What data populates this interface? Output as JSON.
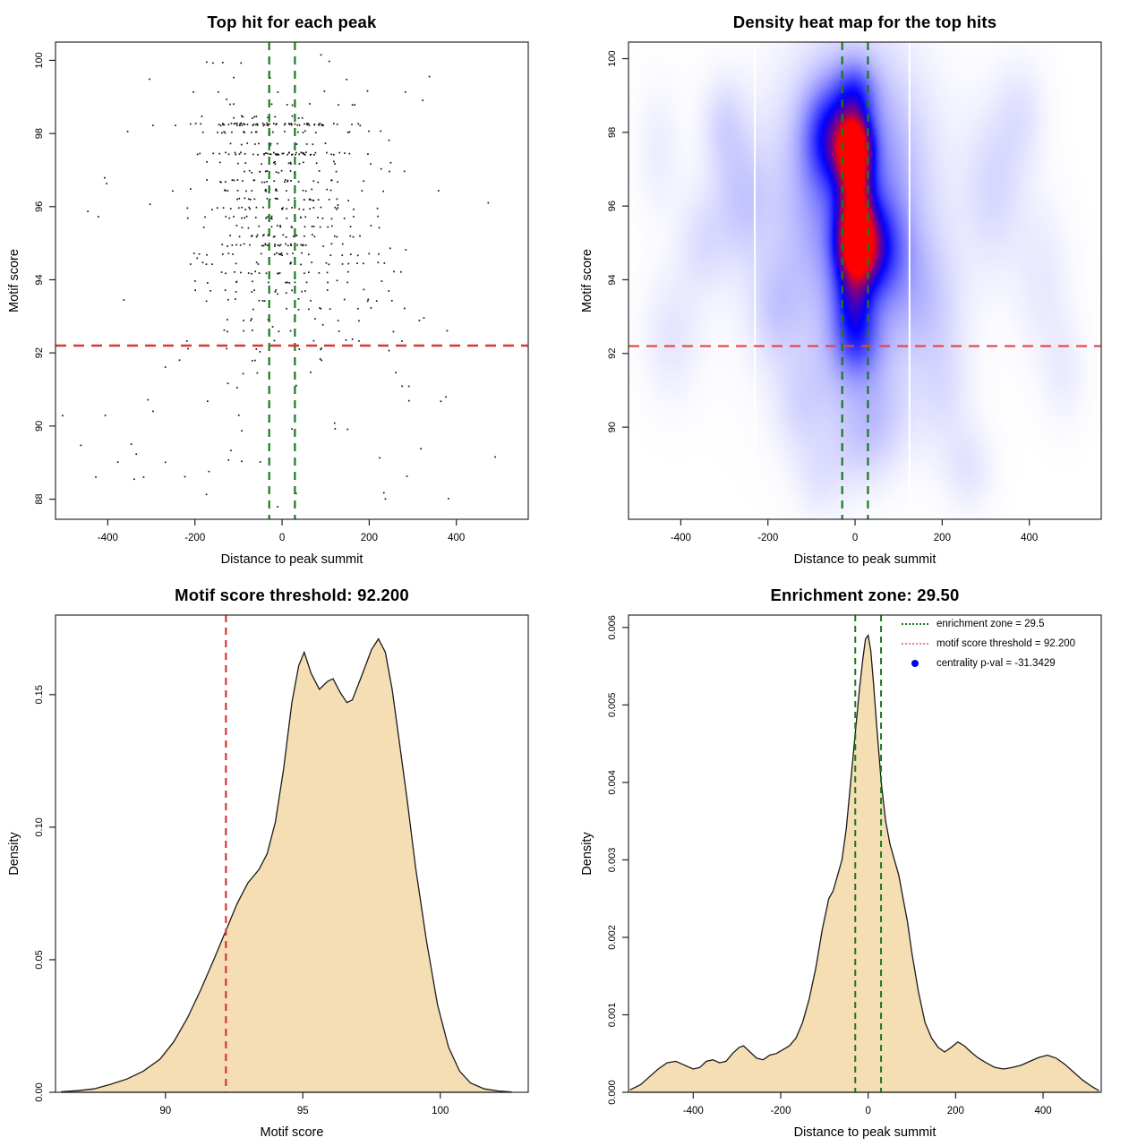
{
  "page": {
    "background": "#ffffff",
    "accent_green": "#1b7a1b",
    "accent_red": "#d93636"
  },
  "chart_data": [
    {
      "id": "top-hit-scatter",
      "type": "scatter",
      "title": "Top hit for each peak",
      "xlabel": "Distance to peak summit",
      "ylabel": "Motif score",
      "xlim": [
        -520,
        565
      ],
      "ylim": [
        87.45,
        100.5
      ],
      "xticks": {
        "values": [
          -400,
          -200,
          0,
          200,
          400
        ],
        "labels": [
          "-400",
          "-200",
          "0",
          "200",
          "400"
        ]
      },
      "yticks": {
        "values": [
          88,
          90,
          92,
          94,
          96,
          98,
          100
        ],
        "labels": [
          "88",
          "90",
          "92",
          "94",
          "96",
          "98",
          "100"
        ]
      },
      "grid": false,
      "point_color": "#000000",
      "vlines": {
        "xs": [
          -29.5,
          29.5
        ],
        "color": "#1b7a1b",
        "dash": "9,7",
        "width": 2.2
      },
      "hlines": {
        "ys": [
          92.2
        ],
        "color": "#d93636",
        "dash": "12,8",
        "width": 2.4
      },
      "scatter_bands": [
        {
          "y": 99.95,
          "n": 5,
          "s": 160
        },
        {
          "y": 99.5,
          "n": 4,
          "s": 180
        },
        {
          "y": 99.15,
          "n": 6,
          "s": 150
        },
        {
          "y": 98.8,
          "n": 9,
          "s": 120
        },
        {
          "y": 98.45,
          "n": 12,
          "s": 100
        },
        {
          "y": 98.25,
          "n": 68,
          "s": 105
        },
        {
          "y": 98.05,
          "n": 22,
          "s": 115
        },
        {
          "y": 97.7,
          "n": 12,
          "s": 130
        },
        {
          "y": 97.45,
          "n": 52,
          "s": 85
        },
        {
          "y": 97.2,
          "n": 18,
          "s": 110
        },
        {
          "y": 96.95,
          "n": 16,
          "s": 125
        },
        {
          "y": 96.7,
          "n": 26,
          "s": 95
        },
        {
          "y": 96.45,
          "n": 22,
          "s": 105
        },
        {
          "y": 96.2,
          "n": 24,
          "s": 95
        },
        {
          "y": 95.95,
          "n": 28,
          "s": 90
        },
        {
          "y": 95.7,
          "n": 24,
          "s": 95
        },
        {
          "y": 95.45,
          "n": 20,
          "s": 115
        },
        {
          "y": 95.2,
          "n": 26,
          "s": 90
        },
        {
          "y": 94.95,
          "n": 30,
          "s": 85
        },
        {
          "y": 94.7,
          "n": 24,
          "s": 95
        },
        {
          "y": 94.45,
          "n": 20,
          "s": 110
        },
        {
          "y": 94.2,
          "n": 18,
          "s": 105
        },
        {
          "y": 93.95,
          "n": 16,
          "s": 115
        },
        {
          "y": 93.7,
          "n": 14,
          "s": 125
        },
        {
          "y": 93.45,
          "n": 12,
          "s": 135
        },
        {
          "y": 93.2,
          "n": 10,
          "s": 145
        },
        {
          "y": 92.9,
          "n": 9,
          "s": 155
        },
        {
          "y": 92.6,
          "n": 9,
          "s": 160
        },
        {
          "y": 92.35,
          "n": 7,
          "s": 170
        },
        {
          "y": 92.1,
          "n": 6,
          "s": 180
        },
        {
          "y": 91.8,
          "n": 5,
          "s": 200
        },
        {
          "y": 91.45,
          "n": 4,
          "s": 210
        },
        {
          "y": 91.1,
          "n": 3,
          "s": 215
        },
        {
          "y": 90.7,
          "n": 3,
          "s": 225
        },
        {
          "y": 90.3,
          "n": 3,
          "s": 230
        },
        {
          "y": 89.9,
          "n": 2,
          "s": 200
        },
        {
          "y": 89.5,
          "n": 2,
          "s": 215
        },
        {
          "y": 89.05,
          "n": 2,
          "s": 205
        },
        {
          "y": 88.6,
          "n": 2,
          "s": 215
        },
        {
          "y": 88.15,
          "n": 2,
          "s": 225
        },
        {
          "y": 87.8,
          "n": 1,
          "s": 120
        }
      ],
      "scatter_outliers": {
        "n": 55,
        "x_range": [
          -505,
          505
        ],
        "y_range": [
          88.0,
          100.2
        ]
      }
    },
    {
      "id": "density-heat-map",
      "type": "heatmap",
      "title": "Density heat map for the top hits",
      "xlabel": "Distance to peak summit",
      "ylabel": "Motif score",
      "xlim": [
        -520,
        565
      ],
      "ylim": [
        87.5,
        100.45
      ],
      "xticks": {
        "values": [
          -400,
          -200,
          0,
          200,
          400
        ],
        "labels": [
          "-400",
          "-200",
          "0",
          "200",
          "400"
        ]
      },
      "yticks": {
        "values": [
          90,
          92,
          94,
          96,
          98,
          100
        ],
        "labels": [
          "90",
          "92",
          "94",
          "96",
          "98",
          "100"
        ]
      },
      "color_scale": {
        "stops": [
          "#ffffff",
          "#0000ff",
          "#ff0000"
        ],
        "blue_point": 0.55,
        "normalize": 1.3
      },
      "gap_lines_x": [
        -230,
        125
      ],
      "vlines": {
        "xs": [
          -29.5,
          29.5
        ],
        "color": "#1b7a1b",
        "dash": "9,7",
        "width": 2.2
      },
      "hlines": {
        "ys": [
          92.2
        ],
        "color": "#e04545",
        "dash": "12,8",
        "width": 2.2
      },
      "blobs": [
        {
          "x": -2,
          "y": 97.6,
          "sx": 26,
          "sy": 0.55,
          "w": 1.0
        },
        {
          "x": 3,
          "y": 95.0,
          "sx": 30,
          "sy": 0.65,
          "w": 0.97
        },
        {
          "x": 0,
          "y": 96.4,
          "sx": 26,
          "sy": 1.0,
          "w": 0.8
        },
        {
          "x": -55,
          "y": 97.9,
          "sx": 40,
          "sy": 0.9,
          "w": 0.5
        },
        {
          "x": 45,
          "y": 94.8,
          "sx": 45,
          "sy": 0.9,
          "w": 0.45
        },
        {
          "x": -5,
          "y": 93.6,
          "sx": 30,
          "sy": 0.8,
          "w": 0.42
        },
        {
          "x": 0,
          "y": 99.0,
          "sx": 30,
          "sy": 0.6,
          "w": 0.35
        },
        {
          "x": 5,
          "y": 92.4,
          "sx": 35,
          "sy": 0.7,
          "w": 0.28
        },
        {
          "x": 0,
          "y": 96.8,
          "sx": 90,
          "sy": 2.2,
          "w": 0.28
        },
        {
          "x": -20,
          "y": 95.5,
          "sx": 140,
          "sy": 2.8,
          "w": 0.16
        },
        {
          "x": 0,
          "y": 91.8,
          "sx": 60,
          "sy": 1.2,
          "w": 0.12
        },
        {
          "x": -300,
          "y": 98.2,
          "sx": 35,
          "sy": 0.9,
          "w": 0.1
        },
        {
          "x": -260,
          "y": 96.2,
          "sx": 45,
          "sy": 1.2,
          "w": 0.12
        },
        {
          "x": -350,
          "y": 95.0,
          "sx": 40,
          "sy": 1.0,
          "w": 0.08
        },
        {
          "x": -420,
          "y": 92.5,
          "sx": 45,
          "sy": 1.2,
          "w": 0.07
        },
        {
          "x": -180,
          "y": 93.2,
          "sx": 40,
          "sy": 1.0,
          "w": 0.1
        },
        {
          "x": -120,
          "y": 90.6,
          "sx": 45,
          "sy": 1.0,
          "w": 0.09
        },
        {
          "x": 60,
          "y": 90.2,
          "sx": 50,
          "sy": 1.0,
          "w": 0.1
        },
        {
          "x": 200,
          "y": 91.0,
          "sx": 45,
          "sy": 1.2,
          "w": 0.08
        },
        {
          "x": 150,
          "y": 93.5,
          "sx": 60,
          "sy": 1.2,
          "w": 0.12
        },
        {
          "x": 320,
          "y": 96.5,
          "sx": 50,
          "sy": 1.5,
          "w": 0.1
        },
        {
          "x": 380,
          "y": 98.5,
          "sx": 40,
          "sy": 1.0,
          "w": 0.07
        },
        {
          "x": 430,
          "y": 94.0,
          "sx": 45,
          "sy": 1.5,
          "w": 0.06
        },
        {
          "x": 260,
          "y": 88.9,
          "sx": 40,
          "sy": 0.8,
          "w": 0.07
        },
        {
          "x": -80,
          "y": 88.6,
          "sx": 40,
          "sy": 0.8,
          "w": 0.06
        },
        {
          "x": -450,
          "y": 97.5,
          "sx": 35,
          "sy": 1.2,
          "w": 0.05
        },
        {
          "x": 480,
          "y": 91.5,
          "sx": 35,
          "sy": 1.0,
          "w": 0.05
        },
        {
          "x": 0,
          "y": 89.5,
          "sx": 45,
          "sy": 0.9,
          "w": 0.07
        }
      ]
    },
    {
      "id": "motif-score-density",
      "type": "density",
      "title": "Motif score threshold: 92.200",
      "threshold": 92.2,
      "xlabel": "Motif score",
      "ylabel": "Density",
      "xlim": [
        86.0,
        103.2
      ],
      "ylim": [
        0,
        0.18
      ],
      "xticks": {
        "values": [
          90,
          95,
          100
        ],
        "labels": [
          "90",
          "95",
          "100"
        ]
      },
      "yticks": {
        "values": [
          0,
          0.05,
          0.1,
          0.15
        ],
        "labels": [
          "0.00",
          "0.05",
          "0.10",
          "0.15"
        ]
      },
      "fill_color": "#f5deb3",
      "line_color": "#1a1a1a",
      "vlines": {
        "xs": [
          92.2
        ],
        "color": "#d93636",
        "dash": "8,6",
        "width": 2.2
      },
      "curve": [
        [
          86.2,
          0.0002
        ],
        [
          86.8,
          0.0006
        ],
        [
          87.4,
          0.0013
        ],
        [
          88.0,
          0.003
        ],
        [
          88.6,
          0.005
        ],
        [
          89.2,
          0.008
        ],
        [
          89.8,
          0.0125
        ],
        [
          90.3,
          0.019
        ],
        [
          90.8,
          0.028
        ],
        [
          91.3,
          0.039
        ],
        [
          91.8,
          0.051
        ],
        [
          92.2,
          0.061
        ],
        [
          92.6,
          0.071
        ],
        [
          93.0,
          0.079
        ],
        [
          93.4,
          0.084
        ],
        [
          93.7,
          0.09
        ],
        [
          94.0,
          0.102
        ],
        [
          94.3,
          0.122
        ],
        [
          94.6,
          0.147
        ],
        [
          94.85,
          0.161
        ],
        [
          95.05,
          0.166
        ],
        [
          95.3,
          0.158
        ],
        [
          95.6,
          0.152
        ],
        [
          95.9,
          0.155
        ],
        [
          96.1,
          0.156
        ],
        [
          96.35,
          0.151
        ],
        [
          96.6,
          0.147
        ],
        [
          96.8,
          0.148
        ],
        [
          97.1,
          0.156
        ],
        [
          97.5,
          0.167
        ],
        [
          97.75,
          0.171
        ],
        [
          98.0,
          0.166
        ],
        [
          98.25,
          0.152
        ],
        [
          98.5,
          0.133
        ],
        [
          98.8,
          0.11
        ],
        [
          99.1,
          0.085
        ],
        [
          99.5,
          0.057
        ],
        [
          99.9,
          0.033
        ],
        [
          100.3,
          0.017
        ],
        [
          100.7,
          0.008
        ],
        [
          101.1,
          0.0035
        ],
        [
          101.6,
          0.0013
        ],
        [
          102.1,
          0.0005
        ],
        [
          102.6,
          0.0001
        ]
      ]
    },
    {
      "id": "enrichment-zone-density",
      "type": "density",
      "title": "Enrichment zone: 29.50",
      "enrichment_zone": 29.5,
      "motif_score_threshold": 92.2,
      "centrality_pval": -31.3429,
      "xlabel": "Distance to peak summit",
      "ylabel": "Density",
      "xlim": [
        -548,
        533
      ],
      "ylim": [
        0,
        0.00616
      ],
      "xticks": {
        "values": [
          -400,
          -200,
          0,
          200,
          400
        ],
        "labels": [
          "-400",
          "-200",
          "0",
          "200",
          "400"
        ]
      },
      "yticks": {
        "values": [
          0,
          0.001,
          0.002,
          0.003,
          0.004,
          0.005,
          0.006
        ],
        "labels": [
          "0.000",
          "0.001",
          "0.002",
          "0.003",
          "0.004",
          "0.005",
          "0.006"
        ]
      },
      "fill_color": "#f5deb3",
      "line_color": "#1a1a1a",
      "vlines": {
        "xs": [
          -29.5,
          29.5
        ],
        "color": "#1b7a1b",
        "dash": "7,5",
        "width": 2.0
      },
      "legend": {
        "position": "top-right-inside",
        "items": [
          {
            "swatch": "dotted-line",
            "color": "#1b7a1b",
            "label": "enrichment zone = 29.5"
          },
          {
            "swatch": "dotted-line",
            "color": "#f08080",
            "label": "motif score threshold = 92.200"
          },
          {
            "swatch": "dot",
            "color": "#0000ee",
            "label": "centrality p-val = -31.3429"
          }
        ]
      },
      "curve": [
        [
          -545,
          3e-05
        ],
        [
          -520,
          0.0001
        ],
        [
          -500,
          0.0002
        ],
        [
          -480,
          0.0003
        ],
        [
          -460,
          0.00038
        ],
        [
          -440,
          0.0004
        ],
        [
          -420,
          0.00035
        ],
        [
          -400,
          0.0003
        ],
        [
          -385,
          0.00032
        ],
        [
          -370,
          0.0004
        ],
        [
          -355,
          0.00042
        ],
        [
          -340,
          0.00038
        ],
        [
          -325,
          0.0004
        ],
        [
          -310,
          0.0005
        ],
        [
          -295,
          0.00058
        ],
        [
          -285,
          0.0006
        ],
        [
          -270,
          0.00052
        ],
        [
          -255,
          0.00044
        ],
        [
          -240,
          0.00042
        ],
        [
          -225,
          0.00048
        ],
        [
          -210,
          0.0005
        ],
        [
          -195,
          0.00055
        ],
        [
          -180,
          0.0006
        ],
        [
          -165,
          0.0007
        ],
        [
          -150,
          0.0009
        ],
        [
          -135,
          0.0012
        ],
        [
          -120,
          0.0016
        ],
        [
          -105,
          0.0021
        ],
        [
          -90,
          0.0025
        ],
        [
          -80,
          0.0026
        ],
        [
          -70,
          0.0028
        ],
        [
          -60,
          0.003
        ],
        [
          -50,
          0.0034
        ],
        [
          -40,
          0.004
        ],
        [
          -30,
          0.0046
        ],
        [
          -20,
          0.0052
        ],
        [
          -12,
          0.0056
        ],
        [
          -6,
          0.00585
        ],
        [
          0,
          0.0059
        ],
        [
          6,
          0.0057
        ],
        [
          12,
          0.0053
        ],
        [
          20,
          0.0047
        ],
        [
          30,
          0.004
        ],
        [
          40,
          0.0035
        ],
        [
          50,
          0.0032
        ],
        [
          60,
          0.003
        ],
        [
          70,
          0.0028
        ],
        [
          80,
          0.0025
        ],
        [
          90,
          0.0022
        ],
        [
          100,
          0.0018
        ],
        [
          115,
          0.0013
        ],
        [
          130,
          0.0009
        ],
        [
          145,
          0.0007
        ],
        [
          160,
          0.00058
        ],
        [
          175,
          0.00052
        ],
        [
          190,
          0.00058
        ],
        [
          205,
          0.00065
        ],
        [
          220,
          0.0006
        ],
        [
          235,
          0.00052
        ],
        [
          250,
          0.00045
        ],
        [
          270,
          0.00038
        ],
        [
          290,
          0.00032
        ],
        [
          310,
          0.0003
        ],
        [
          330,
          0.00032
        ],
        [
          350,
          0.00035
        ],
        [
          370,
          0.0004
        ],
        [
          390,
          0.00045
        ],
        [
          410,
          0.00048
        ],
        [
          430,
          0.00044
        ],
        [
          450,
          0.00036
        ],
        [
          470,
          0.00026
        ],
        [
          490,
          0.00016
        ],
        [
          510,
          8e-05
        ],
        [
          528,
          2e-05
        ]
      ]
    }
  ]
}
